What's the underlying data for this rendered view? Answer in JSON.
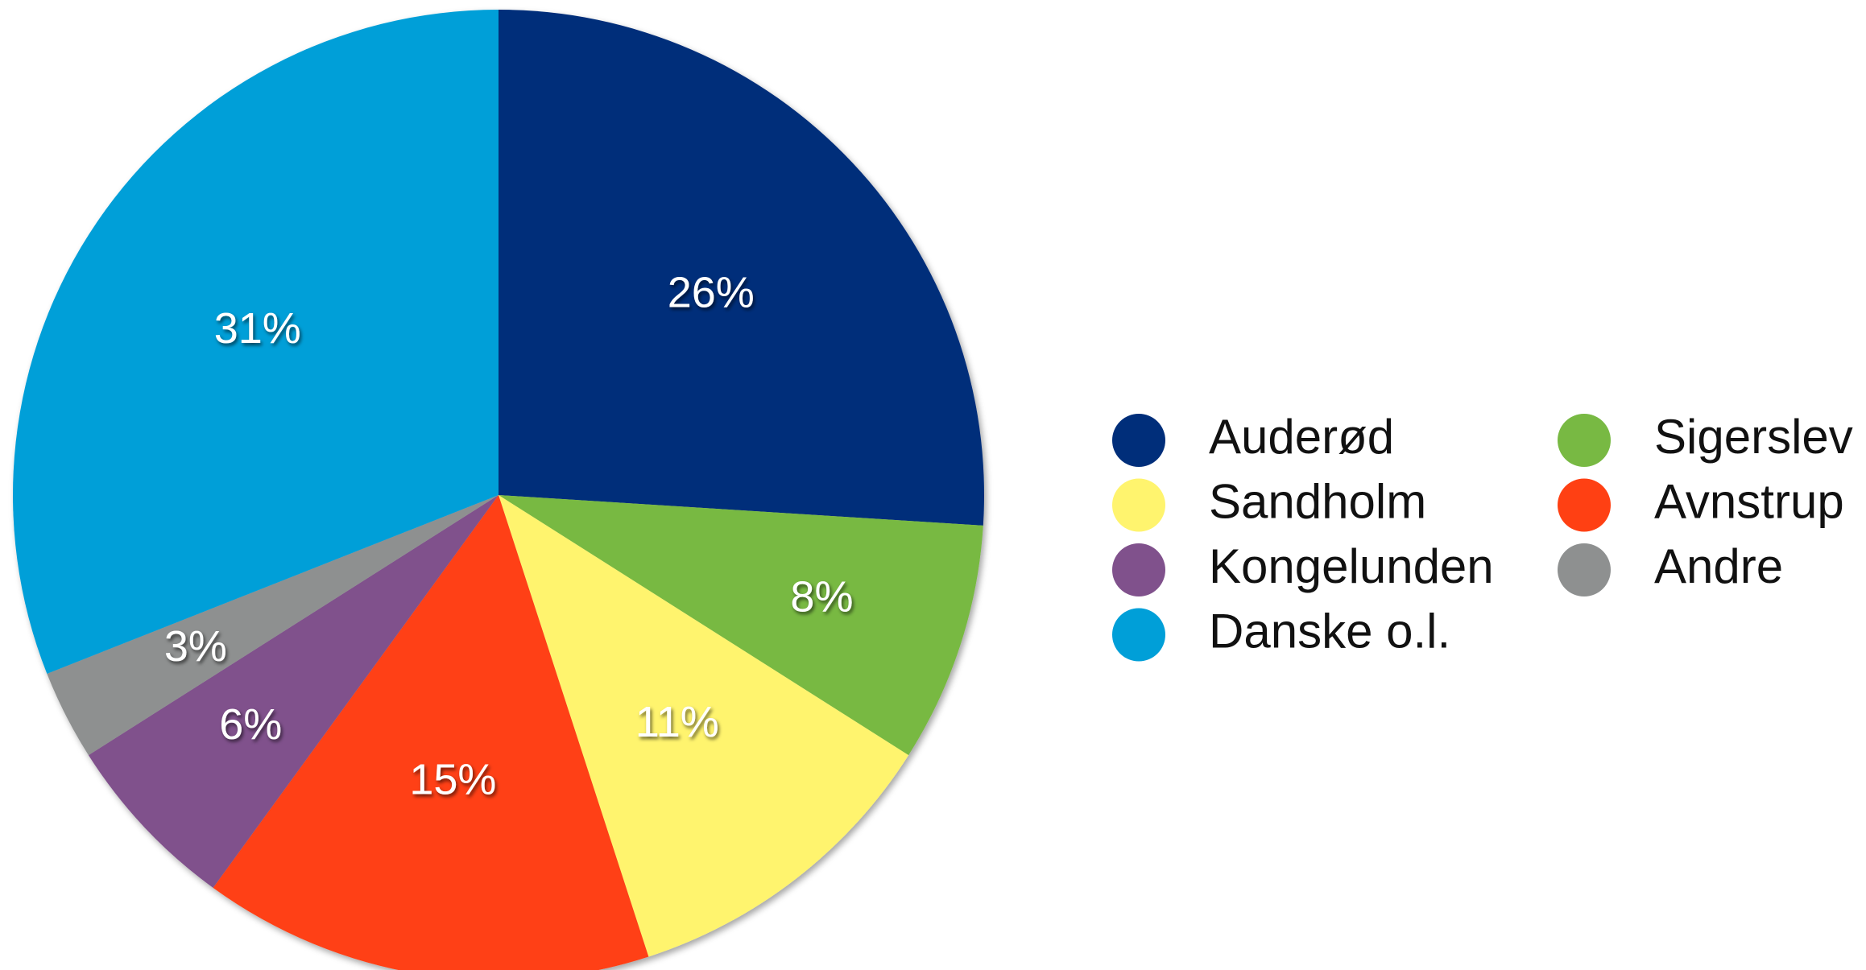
{
  "chart_data": {
    "type": "pie",
    "categories": [
      "Auderød",
      "Sigerslev",
      "Sandholm",
      "Avnstrup",
      "Kongelunden",
      "Andre",
      "Danske o.l."
    ],
    "values": [
      26,
      8,
      11,
      15,
      6,
      3,
      31
    ],
    "value_labels": [
      "26%",
      "8%",
      "11%",
      "15%",
      "6%",
      "3%",
      "31%"
    ],
    "colors": [
      "#002e7a",
      "#78b943",
      "#fff46e",
      "#ff4013",
      "#80518c",
      "#8e9090",
      "#009fd8"
    ],
    "legend": "right"
  }
}
